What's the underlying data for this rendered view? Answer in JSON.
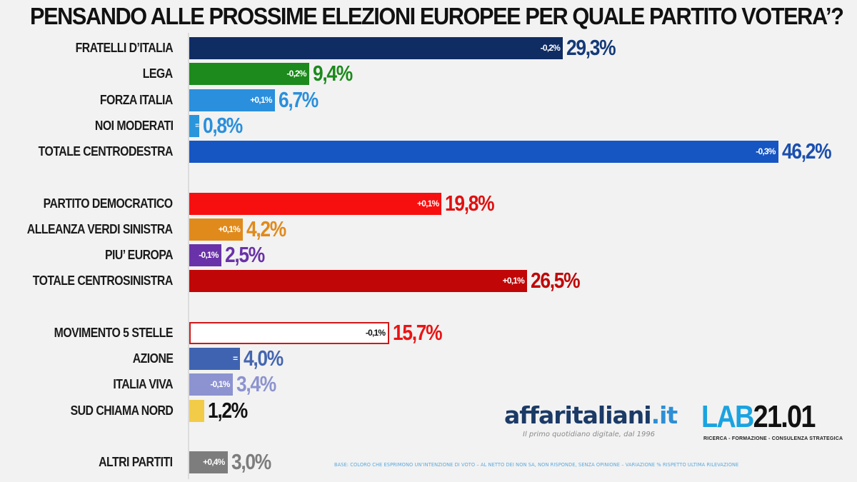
{
  "chart_data": {
    "type": "bar",
    "orientation": "horizontal",
    "title": "PENSANDO ALLE PROSSIME ELEZIONI EUROPEE PER QUALE PARTITO VOTERA’?",
    "xlabel": "",
    "ylabel": "",
    "xlim": [
      0,
      46.2
    ],
    "grid": false,
    "unit": "%",
    "categories": [
      "FRATELLI D’ITALIA",
      "LEGA",
      "FORZA ITALIA",
      "NOI MODERATI",
      "TOTALE CENTRODESTRA",
      "PARTITO DEMOCRATICO",
      "ALLEANZA VERDI SINISTRA",
      "PIU’ EUROPA",
      "TOTALE CENTROSINISTRA",
      "MOVIMENTO 5 STELLE",
      "AZIONE",
      "ITALIA VIVA",
      "SUD CHIAMA NORD",
      "ALTRI PARTITI"
    ],
    "bars": [
      {
        "label": "FRATELLI D’ITALIA",
        "value": 29.3,
        "value_text": "29,3%",
        "delta": "-0,2%",
        "bar_color": "#0f2c63",
        "text_color": "#143a78",
        "group": 0
      },
      {
        "label": "LEGA",
        "value": 9.4,
        "value_text": "9,4%",
        "delta": "-0,2%",
        "bar_color": "#1c8a1c",
        "text_color": "#1c8a1c",
        "group": 0
      },
      {
        "label": "FORZA ITALIA",
        "value": 6.7,
        "value_text": "6,7%",
        "delta": "+0,1%",
        "bar_color": "#2a8fdc",
        "text_color": "#2a8fdc",
        "group": 0
      },
      {
        "label": "NOI MODERATI",
        "value": 0.8,
        "value_text": "0,8%",
        "delta": "=",
        "bar_color": "#2a95db",
        "text_color": "#2a8fdc",
        "group": 0
      },
      {
        "label": "TOTALE CENTRODESTRA",
        "value": 46.2,
        "value_text": "46,2%",
        "delta": "-0,3%",
        "bar_color": "#1656c2",
        "text_color": "#1a4fae",
        "group": 0
      },
      {
        "label": "PARTITO DEMOCRATICO",
        "value": 19.8,
        "value_text": "19,8%",
        "delta": "+0,1%",
        "bar_color": "#f70f0f",
        "text_color": "#e01010",
        "group": 1
      },
      {
        "label": "ALLEANZA VERDI SINISTRA",
        "value": 4.2,
        "value_text": "4,2%",
        "delta": "+0,1%",
        "bar_color": "#e08a1c",
        "text_color": "#e08a1c",
        "group": 1
      },
      {
        "label": "PIU’ EUROPA",
        "value": 2.5,
        "value_text": "2,5%",
        "delta": "-0,1%",
        "bar_color": "#6a32a8",
        "text_color": "#6a32a8",
        "group": 1
      },
      {
        "label": "TOTALE CENTROSINISTRA",
        "value": 26.5,
        "value_text": "26,5%",
        "delta": "+0,1%",
        "bar_color": "#c00606",
        "text_color": "#c00606",
        "group": 1
      },
      {
        "label": "MOVIMENTO 5 STELLE",
        "value": 15.7,
        "value_text": "15,7%",
        "delta": "-0,1%",
        "bar_color": "#ffffff",
        "border_color": "#d01818",
        "delta_color": "#111111",
        "text_color": "#ea1414",
        "group": 2
      },
      {
        "label": "AZIONE",
        "value": 4.0,
        "value_text": "4,0%",
        "delta": "=",
        "bar_color": "#3f63b0",
        "text_color": "#4466b0",
        "group": 2
      },
      {
        "label": "ITALIA VIVA",
        "value": 3.4,
        "value_text": "3,4%",
        "delta": "-0,1%",
        "bar_color": "#8c93d0",
        "text_color": "#8c93d0",
        "group": 2
      },
      {
        "label": "SUD CHIAMA NORD",
        "value": 1.2,
        "value_text": "1,2%",
        "delta": "",
        "bar_color": "#f2cc48",
        "text_color": "#111111",
        "group": 2
      },
      {
        "label": "ALTRI PARTITI",
        "value": 3.0,
        "value_text": "3,0%",
        "delta": "+0,4%",
        "bar_color": "#7d7d7d",
        "text_color": "#7d7d7d",
        "group": 3
      }
    ]
  },
  "branding": {
    "affaritaliani_name": "affaritaliani",
    "affaritaliani_tld": ".it",
    "affaritaliani_tagline": "Il primo quotidiano digitale, dal 1996",
    "lab_prefix": "LAB",
    "lab_number": "21.01",
    "lab_tagline": "RICERCA - FORMAZIONE - CONSULENZA STRATEGICA"
  },
  "footnote": "BASE: COLORO CHE ESPRIMONO UN’INTENZIONE DI VOTO – AL NETTO DEI NON SA, NON RISPONDE, SENZA OPINIONE – VARIAZIONE % RISPETTO ULTIMA RILEVAZIONE"
}
